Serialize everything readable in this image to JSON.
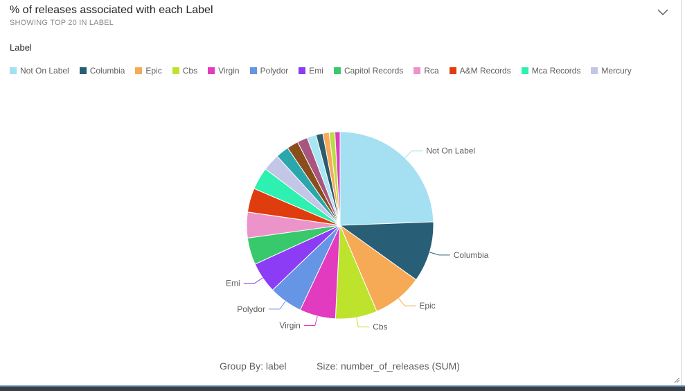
{
  "header": {
    "title": "% of releases associated with each Label",
    "subtitle": "SHOWING TOP 20 IN LABEL",
    "expand_icon": "chevron-down-icon"
  },
  "legend": {
    "title": "Label",
    "items": [
      {
        "label": "Not On Label",
        "color": "#a4dff2"
      },
      {
        "label": "Columbia",
        "color": "#285e76"
      },
      {
        "label": "Epic",
        "color": "#f7aa55"
      },
      {
        "label": "Cbs",
        "color": "#bde32d"
      },
      {
        "label": "Virgin",
        "color": "#e23bbf"
      },
      {
        "label": "Polydor",
        "color": "#6595e4"
      },
      {
        "label": "Emi",
        "color": "#8c3cf4"
      },
      {
        "label": "Capitol Records",
        "color": "#38c96c"
      },
      {
        "label": "Rca",
        "color": "#ec93c9"
      },
      {
        "label": "A&M Records",
        "color": "#df3d0d"
      },
      {
        "label": "Mca Records",
        "color": "#2ef0b0"
      },
      {
        "label": "Mercury",
        "color": "#c4c6e8"
      }
    ]
  },
  "chart_data": {
    "type": "pie",
    "title": "% of releases associated with each Label",
    "subtitle": "SHOWING TOP 20 IN LABEL",
    "legend_title": "Label",
    "legend_position": "top",
    "slices": [
      {
        "label": "Not On Label",
        "value": 24.7,
        "color": "#a4dff2",
        "callout": true
      },
      {
        "label": "Columbia",
        "value": 10.6,
        "color": "#285e76",
        "callout": true
      },
      {
        "label": "Epic",
        "value": 8.8,
        "color": "#f7aa55",
        "callout": true
      },
      {
        "label": "Cbs",
        "value": 7.3,
        "color": "#bde32d",
        "callout": true
      },
      {
        "label": "Virgin",
        "value": 6.3,
        "color": "#e23bbf",
        "callout": true
      },
      {
        "label": "Polydor",
        "value": 5.9,
        "color": "#6595e4",
        "callout": true
      },
      {
        "label": "Emi",
        "value": 5.4,
        "color": "#8c3cf4",
        "callout": true
      },
      {
        "label": "Capitol Records",
        "value": 4.7,
        "color": "#38c96c",
        "callout": false
      },
      {
        "label": "Rca",
        "value": 4.5,
        "color": "#ec93c9",
        "callout": false
      },
      {
        "label": "A&M Records",
        "value": 4.2,
        "color": "#df3d0d",
        "callout": false
      },
      {
        "label": "Mca Records",
        "value": 3.9,
        "color": "#2ef0b0",
        "callout": false
      },
      {
        "label": "Mercury",
        "value": 3.0,
        "color": "#c4c6e8",
        "callout": false
      },
      {
        "label": "",
        "value": 2.3,
        "color": "#2aa6ad",
        "callout": false
      },
      {
        "label": "",
        "value": 2.0,
        "color": "#8a4e1c",
        "callout": false
      },
      {
        "label": "",
        "value": 1.8,
        "color": "#a8567d",
        "callout": false
      },
      {
        "label": "",
        "value": 1.6,
        "color": "#a9e6f4",
        "callout": false
      },
      {
        "label": "",
        "value": 1.2,
        "color": "#2d5a6c",
        "callout": false
      },
      {
        "label": "",
        "value": 1.1,
        "color": "#f5aa5c",
        "callout": false
      },
      {
        "label": "",
        "value": 1.0,
        "color": "#bddb44",
        "callout": false
      },
      {
        "label": "",
        "value": 0.9,
        "color": "#d83fbd",
        "callout": false
      }
    ]
  },
  "footer": {
    "group_by": "Group By: label",
    "size": "Size: number_of_releases (SUM)"
  }
}
